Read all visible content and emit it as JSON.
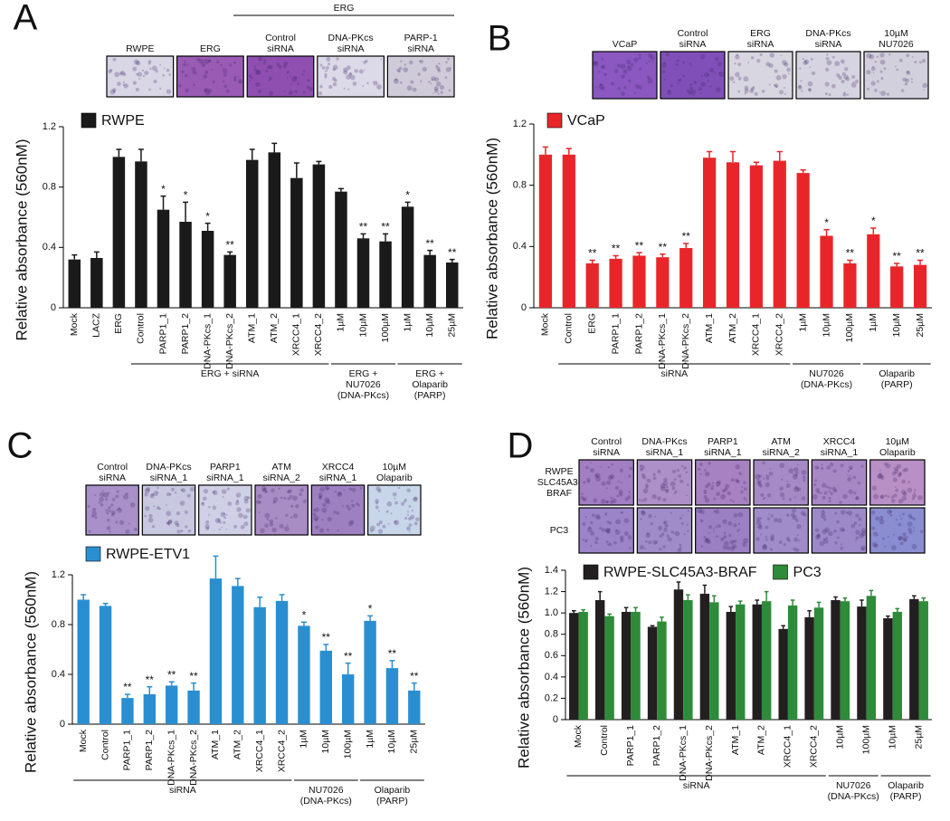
{
  "chart_data": [
    {
      "type": "bar",
      "panel_label": "A",
      "y_label": "Relative absorbance (560nM)",
      "categories": [
        "Mock",
        "LACZ",
        "ERG",
        "Control",
        "PARP1_1",
        "PARP1_2",
        "DNA-PKcs_1",
        "DNA-PKcs_2",
        "ATM_1",
        "ATM_2",
        "XRCC4_1",
        "XRCC4_2",
        "1µM",
        "10µM",
        "100µM",
        "1µM",
        "10µM",
        "25µM"
      ],
      "series": [
        {
          "name": "RWPE",
          "color": "#1a1a1a",
          "values": [
            0.32,
            0.33,
            1.0,
            0.97,
            0.65,
            0.57,
            0.51,
            0.35,
            0.98,
            1.03,
            0.86,
            0.95,
            0.77,
            0.46,
            0.44,
            0.67,
            0.35,
            0.3
          ],
          "errors": [
            0.03,
            0.04,
            0.05,
            0.08,
            0.09,
            0.13,
            0.05,
            0.02,
            0.07,
            0.06,
            0.1,
            0.02,
            0.02,
            0.03,
            0.05,
            0.03,
            0.03,
            0.02
          ],
          "annotations": [
            null,
            null,
            null,
            null,
            "*",
            "*",
            "*",
            "**",
            null,
            null,
            null,
            null,
            null,
            "**",
            "**",
            "*",
            "**",
            "**"
          ]
        }
      ],
      "ylim": [
        0,
        1.2
      ],
      "yticks": [
        0,
        0.4,
        0.8,
        1.2
      ],
      "groups": [
        {
          "lines": [
            "ERG + siRNA"
          ]
        },
        {
          "lines": [
            "ERG +",
            "NU7026",
            "(DNA-PKcs)"
          ]
        },
        {
          "lines": [
            "ERG +",
            "Olaparib",
            "(PARP)"
          ]
        }
      ],
      "images": {
        "header": "ERG",
        "columns": [
          [
            "RWPE"
          ],
          [
            "ERG"
          ],
          [
            "Control",
            "siRNA"
          ],
          [
            "DNA-PKcs",
            "siRNA"
          ],
          [
            "PARP-1",
            "siRNA"
          ]
        ],
        "rows": [
          {
            "colors": [
              "#d9d6e6",
              "#9a5bb5",
              "#8f4fb0",
              "#dcd9e8",
              "#cfcbd9"
            ]
          }
        ]
      }
    },
    {
      "type": "bar",
      "panel_label": "B",
      "y_label": "Relative absorbance (560nM)",
      "categories": [
        "Mock",
        "Control",
        "ERG",
        "PARP1_1",
        "PARP1_2",
        "DNA-PKcs_1",
        "DNA-PKcs_2",
        "ATM_1",
        "ATM_2",
        "XRCC4_1",
        "XRCC4_2",
        "1µM",
        "10µM",
        "100µM",
        "1µM",
        "10µM",
        "25µM"
      ],
      "series": [
        {
          "name": "VCaP",
          "color": "#e8262a",
          "values": [
            1.0,
            1.0,
            0.29,
            0.32,
            0.34,
            0.33,
            0.39,
            0.98,
            0.95,
            0.93,
            0.96,
            0.88,
            0.47,
            0.29,
            0.48,
            0.27,
            0.28
          ],
          "errors": [
            0.05,
            0.04,
            0.02,
            0.02,
            0.02,
            0.02,
            0.03,
            0.04,
            0.07,
            0.02,
            0.06,
            0.02,
            0.04,
            0.02,
            0.04,
            0.02,
            0.03
          ],
          "annotations": [
            null,
            null,
            "**",
            "**",
            "**",
            "**",
            "**",
            null,
            null,
            null,
            null,
            null,
            "*",
            "**",
            "*",
            "**",
            "**"
          ]
        }
      ],
      "ylim": [
        0,
        1.2
      ],
      "yticks": [
        0,
        0.4,
        0.8,
        1.2
      ],
      "groups": [
        {
          "lines": [
            "siRNA"
          ]
        },
        {
          "lines": [
            "NU7026",
            "(DNA-PKcs)"
          ]
        },
        {
          "lines": [
            "Olaparib",
            "(PARP)"
          ]
        }
      ],
      "images": {
        "columns": [
          [
            "VCaP"
          ],
          [
            "Control",
            "siRNA"
          ],
          [
            "ERG",
            "siRNA"
          ],
          [
            "DNA-PKcs",
            "siRNA"
          ],
          [
            "10µM",
            "NU7026"
          ]
        ],
        "rows": [
          {
            "colors": [
              "#8a58c0",
              "#8050b8",
              "#d8d6e0",
              "#d6d4e0",
              "#d2d0dc"
            ]
          }
        ]
      }
    },
    {
      "type": "bar",
      "panel_label": "C",
      "y_label": "Relative absorbance (560nM)",
      "categories": [
        "Mock",
        "Control",
        "PARP1_1",
        "PARP1_2",
        "DNA-PKcs_1",
        "DNA-PKcs_2",
        "ATM_1",
        "ATM_2",
        "XRCC4_1",
        "XRCC4_2",
        "1µM",
        "10µM",
        "100µM",
        "1µM",
        "10µM",
        "25µM"
      ],
      "series": [
        {
          "name": "RWPE-ETV1",
          "color": "#2a8fd0",
          "values": [
            1.0,
            0.95,
            0.21,
            0.24,
            0.31,
            0.27,
            1.17,
            1.11,
            0.94,
            0.99,
            0.79,
            0.59,
            0.4,
            0.83,
            0.45,
            0.27
          ],
          "errors": [
            0.04,
            0.02,
            0.03,
            0.06,
            0.03,
            0.06,
            0.18,
            0.06,
            0.08,
            0.05,
            0.03,
            0.05,
            0.09,
            0.04,
            0.06,
            0.06
          ],
          "annotations": [
            null,
            null,
            "**",
            "**",
            "**",
            "**",
            null,
            null,
            null,
            null,
            "*",
            "**",
            "**",
            "*",
            "**",
            "**"
          ]
        }
      ],
      "ylim": [
        0,
        1.2
      ],
      "yticks": [
        0,
        0.4,
        0.8,
        1.2
      ],
      "groups": [
        {
          "lines": [
            "siRNA"
          ]
        },
        {
          "lines": [
            "NU7026",
            "(DNA-PKcs)"
          ]
        },
        {
          "lines": [
            "Olaparib",
            "(PARP)"
          ]
        }
      ],
      "images": {
        "columns": [
          [
            "Control",
            "siRNA"
          ],
          [
            "DNA-PKcs",
            "siRNA_1"
          ],
          [
            "PARP1",
            "siRNA_1"
          ],
          [
            "ATM",
            "siRNA_2"
          ],
          [
            "XRCC4",
            "siRNA_1"
          ],
          [
            "10µM",
            "Olaparib"
          ]
        ],
        "rows": [
          {
            "colors": [
              "#a890c8",
              "#c8c8e0",
              "#cfd0e6",
              "#a88cc4",
              "#9c80c0",
              "#c8d6ea"
            ]
          }
        ]
      }
    },
    {
      "type": "bar",
      "panel_label": "D",
      "y_label": "Relative absorbance (560nM)",
      "categories": [
        "Mock",
        "Control",
        "PARP1_1",
        "PARP1_2",
        "DNA-PKcs_1",
        "DNA-PKcs_2",
        "ATM_1",
        "ATM_2",
        "XRCC4_1",
        "XRCC4_2",
        "10µM",
        "100µM",
        "10µM",
        "25µM"
      ],
      "series": [
        {
          "name": "RWPE-SLC45A3-BRAF",
          "color": "#231f20",
          "values": [
            1.0,
            1.12,
            1.01,
            0.87,
            1.22,
            1.18,
            1.01,
            1.08,
            0.85,
            0.96,
            1.12,
            1.06,
            0.95,
            1.13
          ],
          "errors": [
            0.02,
            0.08,
            0.04,
            0.01,
            0.07,
            0.08,
            0.05,
            0.04,
            0.03,
            0.06,
            0.03,
            0.06,
            0.02,
            0.03
          ]
        },
        {
          "name": "PC3",
          "color": "#2e8b3a",
          "values": [
            1.01,
            0.97,
            1.01,
            0.92,
            1.12,
            1.1,
            1.08,
            1.11,
            1.07,
            1.05,
            1.11,
            1.16,
            1.01,
            1.11
          ],
          "errors": [
            0.02,
            0.02,
            0.04,
            0.04,
            0.05,
            0.06,
            0.03,
            0.09,
            0.05,
            0.05,
            0.03,
            0.05,
            0.03,
            0.03
          ]
        }
      ],
      "ylim": [
        0,
        1.4
      ],
      "yticks": [
        0,
        0.2,
        0.4,
        0.6,
        0.8,
        {
          "value": 1,
          "label": "1.0"
        },
        1.2,
        1.4
      ],
      "groups": [
        {
          "lines": [
            "siRNA"
          ]
        },
        {
          "lines": [
            "NU7026",
            "(DNA-PKcs)"
          ]
        },
        {
          "lines": [
            "Olaparib",
            "(PARP)"
          ]
        }
      ],
      "images": {
        "columns": [
          [
            "Control",
            "siRNA"
          ],
          [
            "DNA-PKcs",
            "siRNA_1"
          ],
          [
            "PARP1",
            "siRNA_1"
          ],
          [
            "ATM",
            "siRNA_2"
          ],
          [
            "XRCC4",
            "siRNA_1"
          ],
          [
            "10µM",
            "Olaparib"
          ]
        ],
        "rows": [
          {
            "label": [
              "RWPE",
              "SLC45A3-",
              "BRAF"
            ],
            "colors": [
              "#a27ec2",
              "#ae90c8",
              "#a682c0",
              "#a68ac6",
              "#a888c4",
              "#b890c6"
            ]
          },
          {
            "label": [
              "PC3"
            ],
            "colors": [
              "#9b84c8",
              "#9f8cc8",
              "#9b80c4",
              "#a08cc8",
              "#9c8ac8",
              "#8a8ed0"
            ]
          }
        ]
      }
    }
  ]
}
